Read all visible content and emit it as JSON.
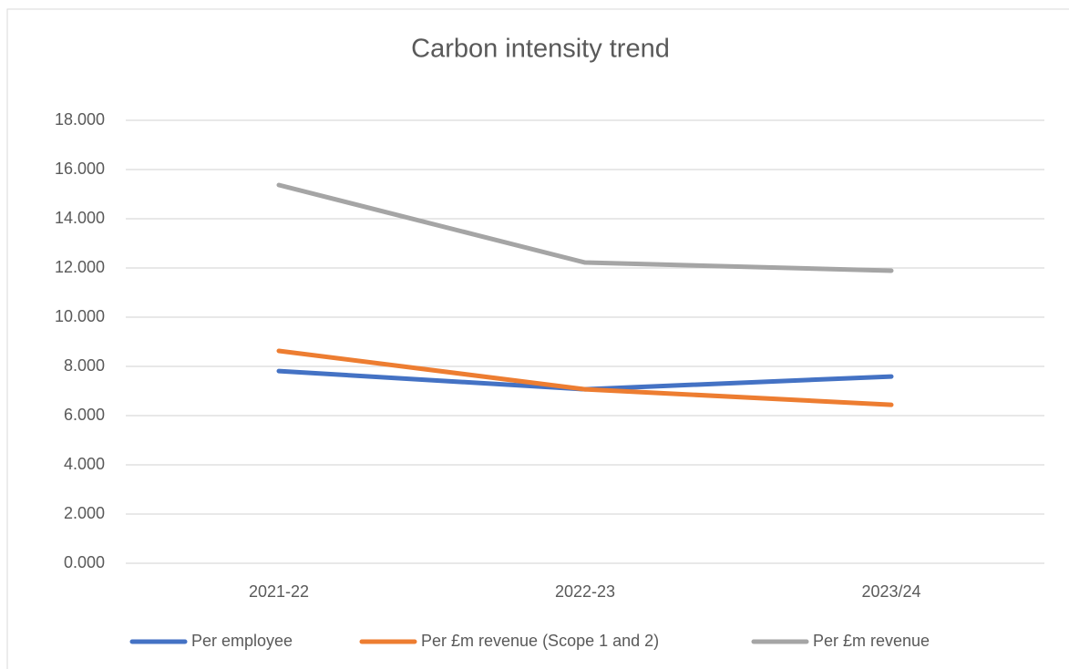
{
  "chart_data": {
    "type": "line",
    "title": "Carbon intensity trend",
    "categories": [
      "2021-22",
      "2022-23",
      "2023/24"
    ],
    "series": [
      {
        "name": "Per employee",
        "color": "#4472c4",
        "values": [
          7.81,
          7.07,
          7.59
        ]
      },
      {
        "name": "Per £m revenue (Scope 1 and 2)",
        "color": "#ed7d31",
        "values": [
          8.63,
          7.07,
          6.44
        ]
      },
      {
        "name": "Per £m revenue",
        "color": "#a5a5a5",
        "values": [
          15.37,
          12.22,
          11.89
        ]
      }
    ],
    "ylim": [
      0,
      18
    ],
    "yticks": [
      {
        "value": 0,
        "label": "0.000"
      },
      {
        "value": 2,
        "label": "2.000"
      },
      {
        "value": 4,
        "label": "4.000"
      },
      {
        "value": 6,
        "label": "6.000"
      },
      {
        "value": 8,
        "label": "8.000"
      },
      {
        "value": 10,
        "label": "10.000"
      },
      {
        "value": 12,
        "label": "12.000"
      },
      {
        "value": 14,
        "label": "14.000"
      },
      {
        "value": 16,
        "label": "16.000"
      },
      {
        "value": 18,
        "label": "18.000"
      }
    ],
    "grid": true,
    "legend": "bottom"
  }
}
